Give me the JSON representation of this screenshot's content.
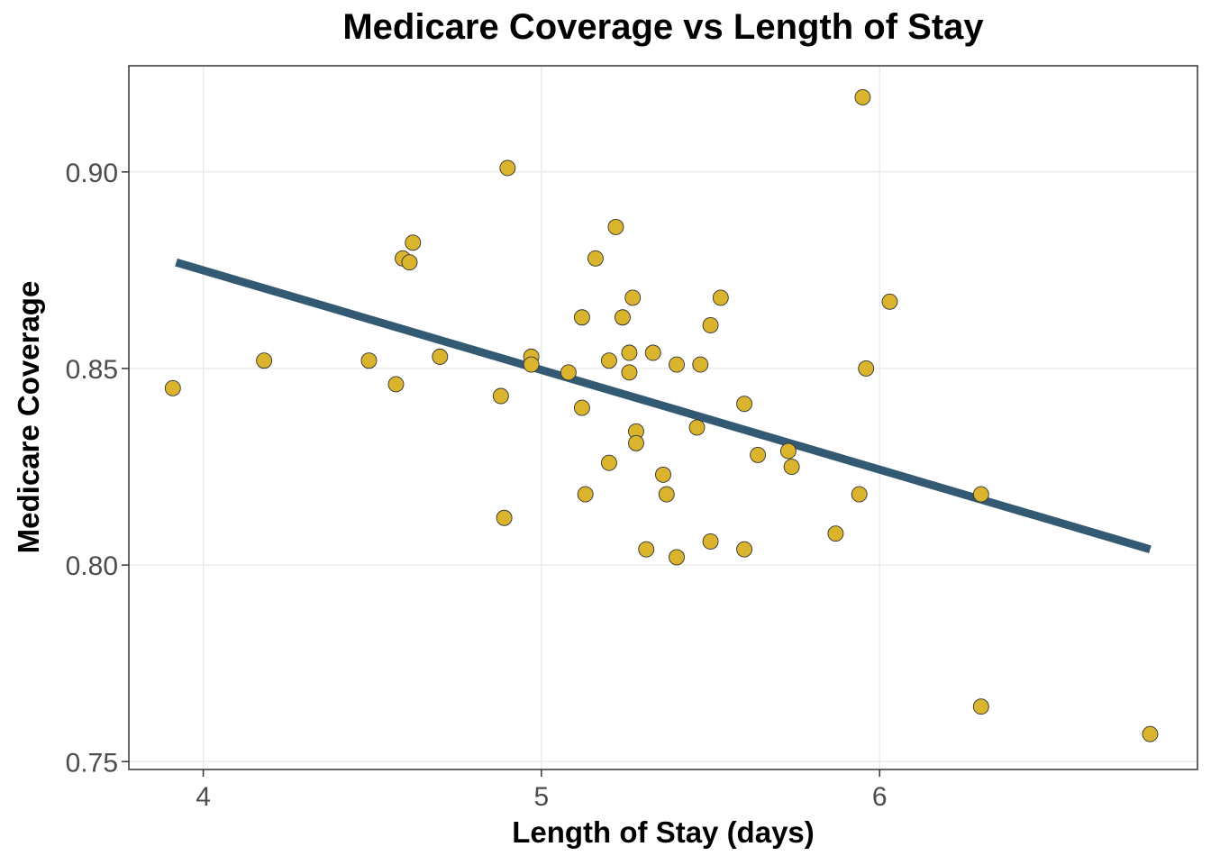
{
  "chart_data": {
    "type": "scatter",
    "title": "Medicare Coverage vs Length of Stay",
    "xlabel": "Length of Stay (days)",
    "ylabel": "Medicare Coverage",
    "xlim": [
      3.78,
      6.94
    ],
    "ylim": [
      0.748,
      0.927
    ],
    "xticks": [
      4,
      5,
      6
    ],
    "xtick_labels": [
      "4",
      "5",
      "6"
    ],
    "yticks": [
      0.75,
      0.8,
      0.85,
      0.9
    ],
    "ytick_labels": [
      "0.75",
      "0.80",
      "0.85",
      "0.90"
    ],
    "grid": true,
    "legend": "none",
    "point_color": "#DAB42C",
    "line_color": "#345A73",
    "points": [
      {
        "x": 3.91,
        "y": 0.845
      },
      {
        "x": 4.18,
        "y": 0.852
      },
      {
        "x": 4.49,
        "y": 0.852
      },
      {
        "x": 4.57,
        "y": 0.846
      },
      {
        "x": 4.59,
        "y": 0.878
      },
      {
        "x": 4.61,
        "y": 0.877
      },
      {
        "x": 4.62,
        "y": 0.882
      },
      {
        "x": 4.7,
        "y": 0.853
      },
      {
        "x": 4.88,
        "y": 0.843
      },
      {
        "x": 4.89,
        "y": 0.812
      },
      {
        "x": 4.9,
        "y": 0.901
      },
      {
        "x": 4.97,
        "y": 0.853
      },
      {
        "x": 4.97,
        "y": 0.851
      },
      {
        "x": 5.08,
        "y": 0.849
      },
      {
        "x": 5.12,
        "y": 0.863
      },
      {
        "x": 5.12,
        "y": 0.84
      },
      {
        "x": 5.13,
        "y": 0.818
      },
      {
        "x": 5.16,
        "y": 0.878
      },
      {
        "x": 5.2,
        "y": 0.852
      },
      {
        "x": 5.2,
        "y": 0.826
      },
      {
        "x": 5.22,
        "y": 0.886
      },
      {
        "x": 5.24,
        "y": 0.863
      },
      {
        "x": 5.26,
        "y": 0.854
      },
      {
        "x": 5.26,
        "y": 0.849
      },
      {
        "x": 5.27,
        "y": 0.868
      },
      {
        "x": 5.28,
        "y": 0.834
      },
      {
        "x": 5.28,
        "y": 0.831
      },
      {
        "x": 5.31,
        "y": 0.804
      },
      {
        "x": 5.33,
        "y": 0.854
      },
      {
        "x": 5.36,
        "y": 0.823
      },
      {
        "x": 5.37,
        "y": 0.818
      },
      {
        "x": 5.4,
        "y": 0.851
      },
      {
        "x": 5.4,
        "y": 0.802
      },
      {
        "x": 5.46,
        "y": 0.835
      },
      {
        "x": 5.47,
        "y": 0.851
      },
      {
        "x": 5.5,
        "y": 0.861
      },
      {
        "x": 5.5,
        "y": 0.806
      },
      {
        "x": 5.53,
        "y": 0.868
      },
      {
        "x": 5.6,
        "y": 0.841
      },
      {
        "x": 5.6,
        "y": 0.804
      },
      {
        "x": 5.64,
        "y": 0.828
      },
      {
        "x": 5.73,
        "y": 0.829
      },
      {
        "x": 5.74,
        "y": 0.825
      },
      {
        "x": 5.87,
        "y": 0.808
      },
      {
        "x": 5.94,
        "y": 0.818
      },
      {
        "x": 5.95,
        "y": 0.919
      },
      {
        "x": 5.96,
        "y": 0.85
      },
      {
        "x": 6.03,
        "y": 0.867
      },
      {
        "x": 6.3,
        "y": 0.818
      },
      {
        "x": 6.3,
        "y": 0.764
      },
      {
        "x": 6.8,
        "y": 0.757
      }
    ],
    "fit_line": {
      "x": [
        3.92,
        6.8
      ],
      "y": [
        0.877,
        0.804
      ]
    }
  }
}
